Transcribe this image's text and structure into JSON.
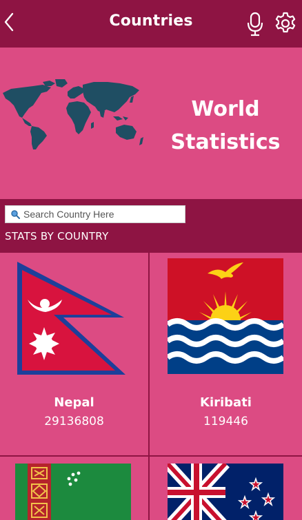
{
  "app_bar": {
    "title": "Countries",
    "back_icon": "chevron-left-icon",
    "mic_icon": "microphone-icon",
    "settings_icon": "gear-icon"
  },
  "hero": {
    "title_line1": "World",
    "title_line2": "Statistics",
    "image": "world-map"
  },
  "search": {
    "placeholder": "Search Country Here",
    "value": ""
  },
  "section_label": "STATS BY COUNTRY",
  "countries": [
    {
      "name": "Nepal",
      "population": "29136808",
      "flag": "nepal-flag"
    },
    {
      "name": "Kiribati",
      "population": "119446",
      "flag": "kiribati-flag"
    },
    {
      "name": "",
      "population": "",
      "flag": "turkmenistan-flag"
    },
    {
      "name": "",
      "population": "",
      "flag": "new-zealand-flag"
    }
  ],
  "colors": {
    "primary_dark": "#8e1443",
    "primary": "#dc4b83",
    "map": "#1f4e63"
  }
}
